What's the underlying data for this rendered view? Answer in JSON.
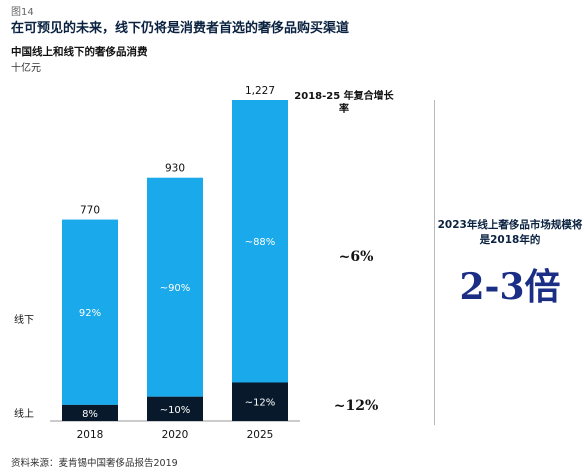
{
  "figure_label": "图14",
  "headline": "在可预见的未来，线下仍将是消费者首选的奢侈品购买渠道",
  "source": "资料来源：麦肯锡中国奢侈品报告2019",
  "colors": {
    "offline": "#1aa9ea",
    "online": "#08192c",
    "text_dark": "#0a2240",
    "multiple_text": "#1b2e86"
  },
  "side_note": {
    "cagr_header": "2018-25 年复合增长率",
    "offline_cagr": "~6%",
    "online_cagr": "~12%",
    "note_text": "2023年线上奢侈品市场规模将是2018年的",
    "multiple": "2-3倍"
  },
  "chart_data": {
    "type": "bar",
    "stacked": true,
    "title": "中国线上和线下的奢侈品消费",
    "ylabel": "十亿元",
    "categories": [
      "2018",
      "2020",
      "2025"
    ],
    "totals": [
      770,
      930,
      1227
    ],
    "total_labels": [
      "770",
      "930",
      "1,227"
    ],
    "series": [
      {
        "name": "线上",
        "share_pct": [
          8,
          10,
          12
        ],
        "labels": [
          "8%",
          "~10%",
          "~12%"
        ],
        "color": "#08192c"
      },
      {
        "name": "线下",
        "share_pct": [
          92,
          90,
          88
        ],
        "labels": [
          "92%",
          "~90%",
          "~88%"
        ],
        "color": "#1aa9ea"
      }
    ],
    "ylim": [
      0,
      1227
    ],
    "grid": false,
    "legend": "left, as row labels"
  }
}
